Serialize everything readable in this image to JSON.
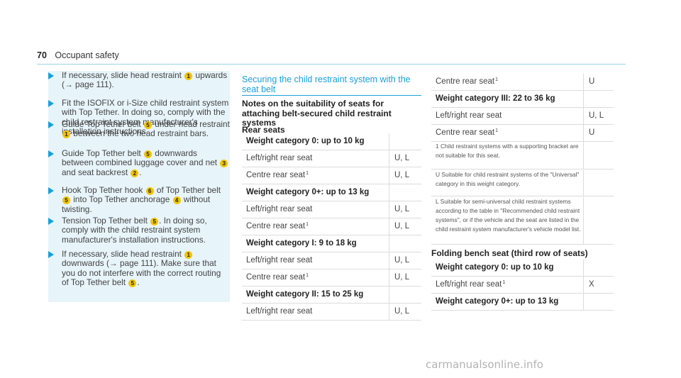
{
  "header": {
    "page_number": "70",
    "section": "Occupant safety"
  },
  "steps": [
    {
      "parts": [
        "If necessary, slide head restraint ",
        "#1",
        " upwards (",
        "→",
        " page 111)."
      ]
    },
    {
      "parts": [
        "Fit the ISOFIX or i-Size child restraint system with Top Tether. In doing so, comply with the child restraint system manufacturer's installation instructions."
      ]
    },
    {
      "parts": [
        "Guide Top Tether belt ",
        "#5",
        " under head restraint ",
        "#1",
        " between the two head restraint bars."
      ]
    },
    {
      "parts": [
        "Guide Top Tether belt ",
        "#5",
        " downwards between combined luggage cover and net ",
        "#3",
        " and seat backrest ",
        "#2",
        "."
      ]
    },
    {
      "parts": [
        "Hook Top Tether hook ",
        "#6",
        " of Top Tether belt ",
        "#5",
        " into Top Tether anchorage ",
        "#4",
        " without twisting."
      ]
    },
    {
      "parts": [
        "Tension Top Tether belt ",
        "#5",
        ". In doing so, comply with the child restraint system manufacturer's installation instructions."
      ]
    },
    {
      "parts": [
        "If necessary, slide head restraint ",
        "#1",
        " downwards (",
        "→",
        " page 111). Make sure that you do not interfere with the correct routing of Top Tether belt ",
        "#5",
        "."
      ]
    }
  ],
  "section_title": "Securing the child restraint system with the seat belt",
  "subsection_title": "Notes on the suitability of seats for attaching belt-secured child restraint systems",
  "rear_seats_title": "Rear seats",
  "rear_seats_rows": [
    {
      "type": "hdr",
      "label": "Weight category 0: up to 10 kg"
    },
    {
      "label": "Left/right rear seat",
      "value": "U, L"
    },
    {
      "label": "Centre rear seat",
      "sup": "1",
      "value": "U, L"
    },
    {
      "type": "hdr",
      "label": "Weight category 0+: up to 13 kg"
    },
    {
      "label": "Left/right rear seat",
      "value": "U, L"
    },
    {
      "label": "Centre rear seat",
      "sup": "1",
      "value": "U, L"
    },
    {
      "type": "hdr",
      "label": "Weight category I: 9 to 18 kg"
    },
    {
      "label": "Left/right rear seat",
      "value": "U, L"
    },
    {
      "label": "Centre rear seat",
      "sup": "1",
      "value": "U, L"
    },
    {
      "type": "hdr",
      "label": "Weight category II: 15 to 25 kg"
    },
    {
      "label": "Left/right rear seat",
      "value": "U, L"
    }
  ],
  "right_rows": [
    {
      "label": "Centre rear seat",
      "sup": "1",
      "value": "U"
    },
    {
      "type": "hdr",
      "label": "Weight category III: 22 to 36 kg"
    },
    {
      "label": "Left/right rear seat",
      "value": "U, L"
    },
    {
      "label": "Centre rear seat",
      "sup": "1",
      "value": "U"
    }
  ],
  "notes": [
    {
      "lines": [
        "1 Child restraint systems with a supporting bracket are",
        "not suitable for this seat."
      ]
    },
    {
      "lines": [
        "U Suitable for child restraint systems of the \"Universal\"",
        "category in this weight category."
      ]
    },
    {
      "lines": [
        "L Suitable for semi-universal child restraint systems",
        "according to the table in \"Recommended child restraint",
        "systems\", or if the vehicle and the seat are listed in the",
        "child restraint system manufacturer's vehicle model list."
      ]
    }
  ],
  "folding_title": "Folding bench seat (third row of seats)",
  "folding_rows": [
    {
      "type": "hdr",
      "label": "Weight category 0: up to 10 kg"
    },
    {
      "label": "Left/right rear seat",
      "sup": "1",
      "value": "X"
    },
    {
      "type": "hdr",
      "label": "Weight category 0+: up to 13 kg"
    }
  ],
  "watermark": "carmanualsonline.info",
  "colors": {
    "accent": "#1ba0d8",
    "badge": "#f0c400",
    "step_bg": "#e7f4fa"
  }
}
